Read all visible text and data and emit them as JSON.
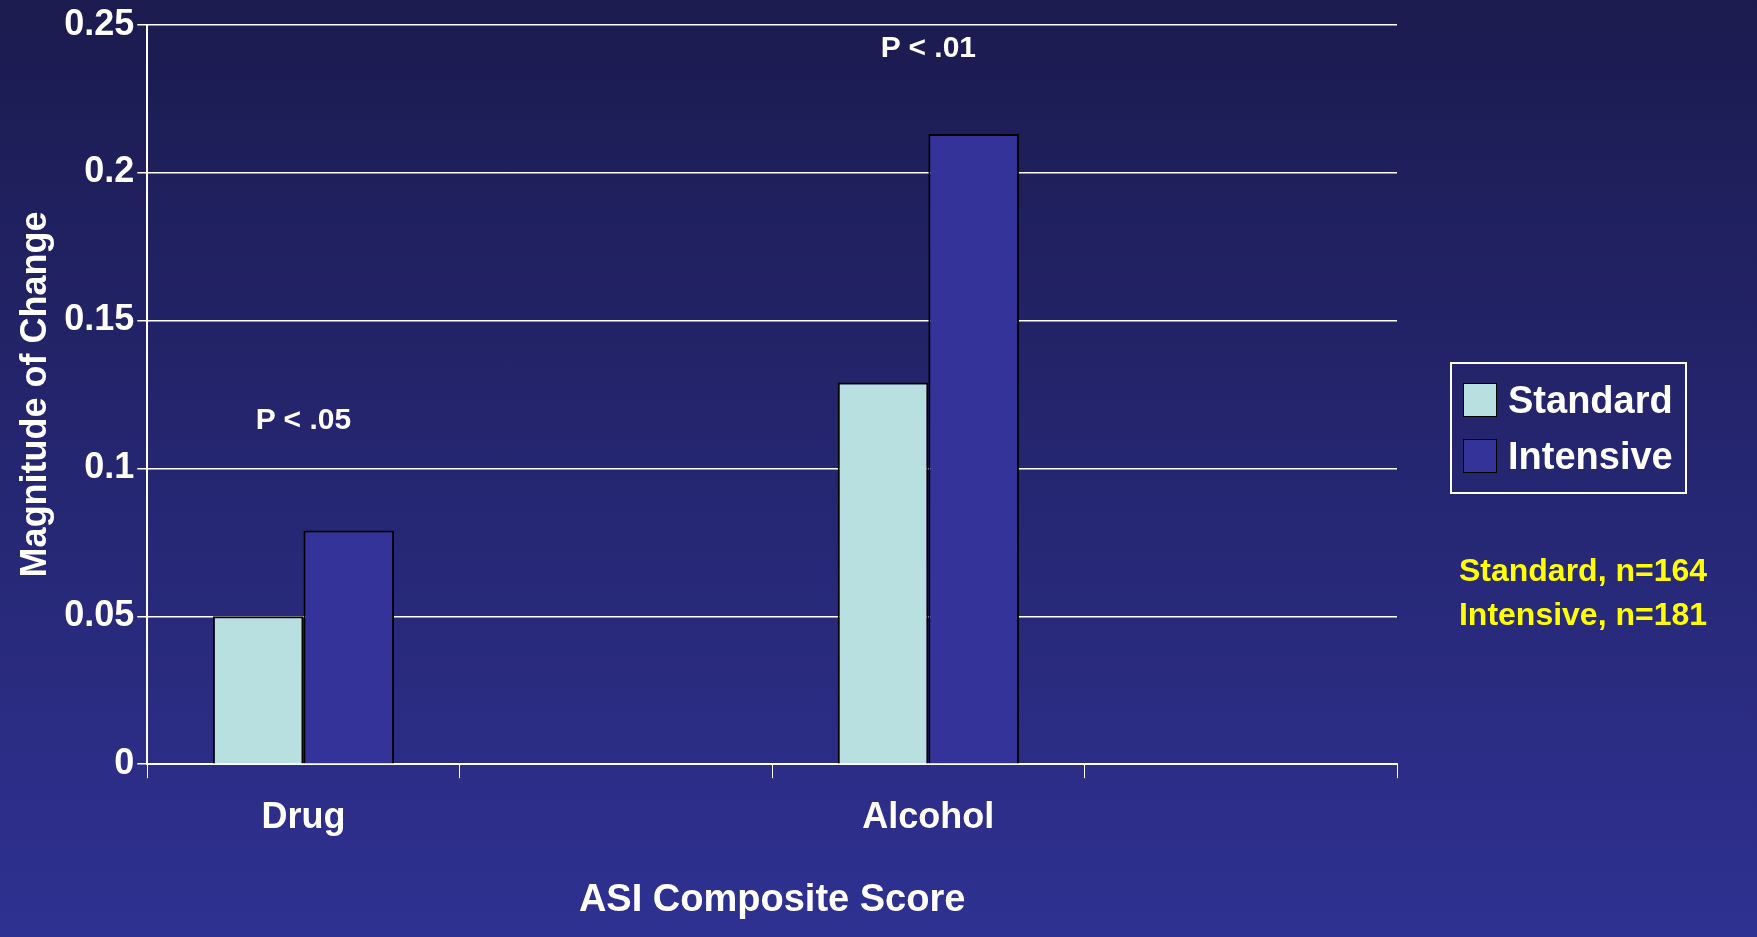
{
  "chart_data": {
    "type": "bar",
    "xlabel": "ASI Composite Score",
    "ylabel": "Magnitude of Change",
    "categories": [
      "Drug",
      null,
      "Alcohol",
      null
    ],
    "series": [
      {
        "name": "Standard",
        "color": "#b8e0e0",
        "values": [
          0.05,
          null,
          0.129,
          null
        ]
      },
      {
        "name": "Intensive",
        "color": "#333399",
        "values": [
          0.079,
          null,
          0.213,
          null
        ]
      }
    ],
    "ylim": [
      0,
      0.25
    ],
    "yticks": [
      0,
      0.05,
      0.1,
      0.15,
      0.2,
      0.25
    ],
    "grid": "y",
    "legend": "right",
    "annotations": [
      "P < .05",
      "P < .01",
      "Standard, n=164",
      "Intensive, n=181"
    ]
  }
}
